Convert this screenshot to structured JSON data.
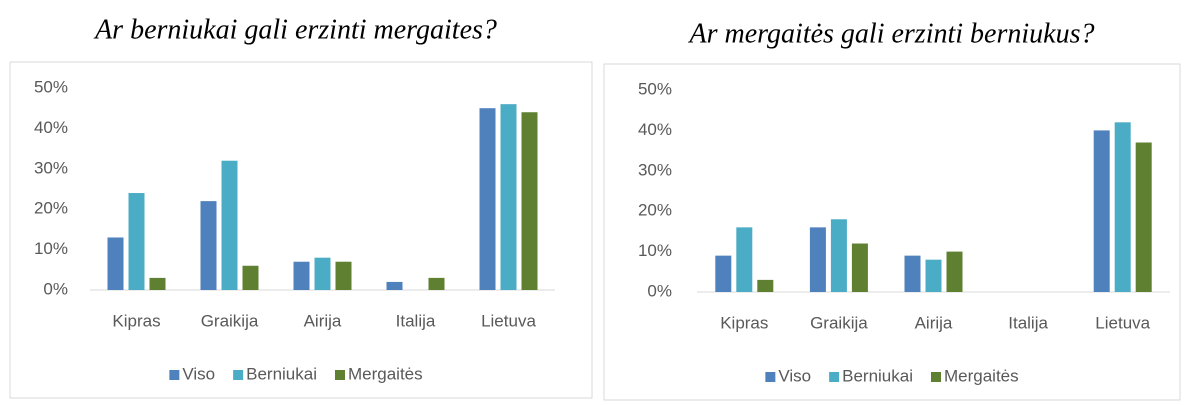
{
  "chart_data": [
    {
      "type": "bar",
      "title": "Ar berniukai gali erzinti mergaites?",
      "categories": [
        "Kipras",
        "Graikija",
        "Airija",
        "Italija",
        "Lietuva"
      ],
      "series": [
        {
          "name": "Viso",
          "color": "#4f81bd",
          "values": [
            13,
            22,
            7,
            2,
            45
          ]
        },
        {
          "name": "Berniukai",
          "color": "#4bacc6",
          "values": [
            24,
            32,
            8,
            0,
            46
          ]
        },
        {
          "name": "Mergaitės",
          "color": "#5f7f31",
          "values": [
            3,
            6,
            7,
            3,
            44
          ]
        }
      ],
      "ylim": [
        0,
        50
      ],
      "yticks": [
        {
          "value": 0,
          "label": "0%"
        },
        {
          "value": 10,
          "label": "10%"
        },
        {
          "value": 20,
          "label": "20%"
        },
        {
          "value": 30,
          "label": "30%"
        },
        {
          "value": 40,
          "label": "40%"
        },
        {
          "value": 50,
          "label": "50%"
        }
      ],
      "grid": false,
      "legend": "bottom"
    },
    {
      "type": "bar",
      "title": "Ar mergaitės gali erzinti berniukus?",
      "categories": [
        "Kipras",
        "Graikija",
        "Airija",
        "Italija",
        "Lietuva"
      ],
      "series": [
        {
          "name": "Viso",
          "color": "#4f81bd",
          "values": [
            9,
            16,
            9,
            0,
            40
          ]
        },
        {
          "name": "Berniukai",
          "color": "#4bacc6",
          "values": [
            16,
            18,
            8,
            0,
            42
          ]
        },
        {
          "name": "Mergaitės",
          "color": "#5f7f31",
          "values": [
            3,
            12,
            10,
            0,
            37
          ]
        }
      ],
      "ylim": [
        0,
        50
      ],
      "yticks": [
        {
          "value": 0,
          "label": "0%"
        },
        {
          "value": 10,
          "label": "10%"
        },
        {
          "value": 20,
          "label": "20%"
        },
        {
          "value": 30,
          "label": "30%"
        },
        {
          "value": 40,
          "label": "40%"
        },
        {
          "value": 50,
          "label": "50%"
        }
      ],
      "grid": false,
      "legend": "bottom"
    }
  ]
}
